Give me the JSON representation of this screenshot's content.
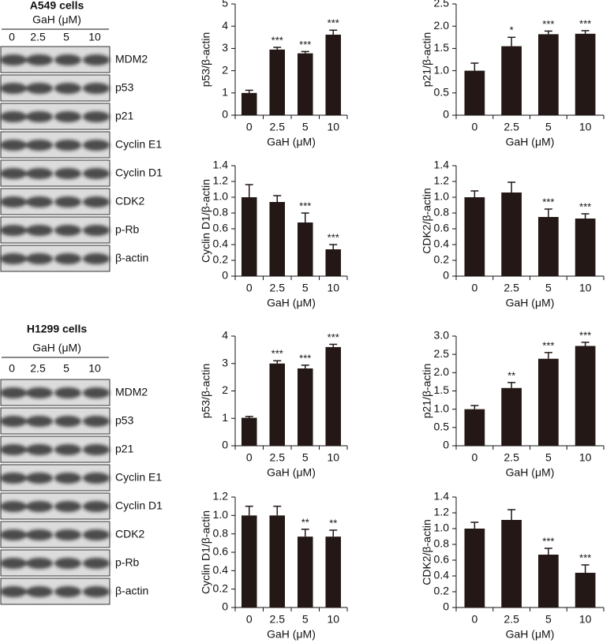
{
  "blots": [
    {
      "title": "A549 cells",
      "treatment": "GaH (μM)",
      "lanes": [
        "0",
        "2.5",
        "5",
        "10"
      ],
      "proteins": [
        "MDM2",
        "p53",
        "p21",
        "Cyclin E1",
        "Cyclin D1",
        "CDK2",
        "p-Rb",
        "β-actin"
      ]
    },
    {
      "title": "H1299 cells",
      "treatment": "GaH (μM)",
      "lanes": [
        "0",
        "2.5",
        "5",
        "10"
      ],
      "proteins": [
        "MDM2",
        "p53",
        "p21",
        "Cyclin E1",
        "Cyclin D1",
        "CDK2",
        "p-Rb",
        "β-actin"
      ]
    }
  ],
  "chart_data": [
    {
      "type": "bar",
      "y_label": "p53/β-actin",
      "x_label": "GaH (μM)",
      "categories": [
        "0",
        "2.5",
        "5",
        "10"
      ],
      "values": [
        1.0,
        2.95,
        2.78,
        3.62
      ],
      "errors": [
        0.12,
        0.1,
        0.08,
        0.2
      ],
      "annotations": [
        null,
        "***",
        "***",
        "***"
      ],
      "color": "#231815",
      "ylim": [
        0,
        5
      ],
      "yticks": [
        0,
        1,
        2,
        3,
        4,
        5
      ]
    },
    {
      "type": "bar",
      "y_label": "p21/β-actin",
      "x_label": "GaH (μM)",
      "categories": [
        "0",
        "2.5",
        "5",
        "10"
      ],
      "values": [
        1.0,
        1.55,
        1.82,
        1.83
      ],
      "errors": [
        0.17,
        0.2,
        0.07,
        0.07
      ],
      "annotations": [
        null,
        "*",
        "***",
        "***"
      ],
      "color": "#231815",
      "ylim": [
        0,
        2.5
      ],
      "yticks": [
        0,
        0.5,
        {
          "value": 1,
          "label": "1.0"
        },
        1.5,
        {
          "value": 2,
          "label": "2.0"
        },
        2.5
      ]
    },
    {
      "type": "bar",
      "y_label": "Cyclin D1/β-actin",
      "x_label": "GaH (μM)",
      "categories": [
        "0",
        "2.5",
        "5",
        "10"
      ],
      "values": [
        1.0,
        0.94,
        0.68,
        0.34
      ],
      "errors": [
        0.16,
        0.08,
        0.12,
        0.06
      ],
      "annotations": [
        null,
        null,
        "***",
        "***"
      ],
      "color": "#231815",
      "ylim": [
        0,
        1.4
      ],
      "yticks": [
        0,
        0.2,
        0.4,
        0.6,
        0.8,
        {
          "value": 1,
          "label": "1.0"
        },
        1.2,
        1.4
      ]
    },
    {
      "type": "bar",
      "y_label": "CDK2/β-actin",
      "x_label": "GaH (μM)",
      "categories": [
        "0",
        "2.5",
        "5",
        "10"
      ],
      "values": [
        1.0,
        1.06,
        0.75,
        0.73
      ],
      "errors": [
        0.08,
        0.13,
        0.1,
        0.06
      ],
      "annotations": [
        null,
        null,
        "***",
        "***"
      ],
      "color": "#231815",
      "ylim": [
        0,
        1.4
      ],
      "yticks": [
        0,
        0.2,
        0.4,
        0.6,
        0.8,
        {
          "value": 1,
          "label": "1.0"
        },
        1.2,
        1.4
      ]
    },
    {
      "type": "bar",
      "y_label": "p53/β-actin",
      "x_label": "GaH (μM)",
      "categories": [
        "0",
        "2.5",
        "5",
        "10"
      ],
      "values": [
        1.02,
        3.0,
        2.82,
        3.6
      ],
      "errors": [
        0.05,
        0.1,
        0.12,
        0.1
      ],
      "annotations": [
        null,
        "***",
        "***",
        "***"
      ],
      "color": "#231815",
      "ylim": [
        0,
        4
      ],
      "yticks": [
        0,
        1,
        2,
        3,
        4
      ]
    },
    {
      "type": "bar",
      "y_label": "p21/β-actin",
      "x_label": "GaH (μM)",
      "categories": [
        "0",
        "2.5",
        "5",
        "10"
      ],
      "values": [
        1.0,
        1.58,
        2.38,
        2.73
      ],
      "errors": [
        0.1,
        0.15,
        0.17,
        0.1
      ],
      "annotations": [
        null,
        "**",
        "***",
        "***"
      ],
      "color": "#231815",
      "ylim": [
        0,
        3
      ],
      "yticks": [
        0,
        0.5,
        {
          "value": 1,
          "label": "1.0"
        },
        1.5,
        {
          "value": 2,
          "label": "2.0"
        },
        2.5,
        {
          "value": 3,
          "label": "3.0"
        }
      ]
    },
    {
      "type": "bar",
      "y_label": "Cyclin D1/β-actin",
      "x_label": "GaH (μM)",
      "categories": [
        "0",
        "2.5",
        "5",
        "10"
      ],
      "values": [
        1.0,
        1.0,
        0.77,
        0.77
      ],
      "errors": [
        0.1,
        0.1,
        0.08,
        0.07
      ],
      "annotations": [
        null,
        null,
        "**",
        "**"
      ],
      "color": "#231815",
      "ylim": [
        0,
        1.2
      ],
      "yticks": [
        0,
        0.2,
        0.4,
        0.6,
        0.8,
        {
          "value": 1,
          "label": "1.0"
        },
        1.2
      ]
    },
    {
      "type": "bar",
      "y_label": "CDK2/β-actin",
      "x_label": "GaH (μM)",
      "categories": [
        "0",
        "2.5",
        "5",
        "10"
      ],
      "values": [
        1.0,
        1.11,
        0.67,
        0.44
      ],
      "errors": [
        0.08,
        0.13,
        0.08,
        0.1
      ],
      "annotations": [
        null,
        null,
        "***",
        "***"
      ],
      "color": "#231815",
      "ylim": [
        0,
        1.4
      ],
      "yticks": [
        0,
        0.2,
        0.4,
        0.6,
        0.8,
        {
          "value": 1,
          "label": "1.0"
        },
        1.2,
        1.4
      ]
    }
  ]
}
